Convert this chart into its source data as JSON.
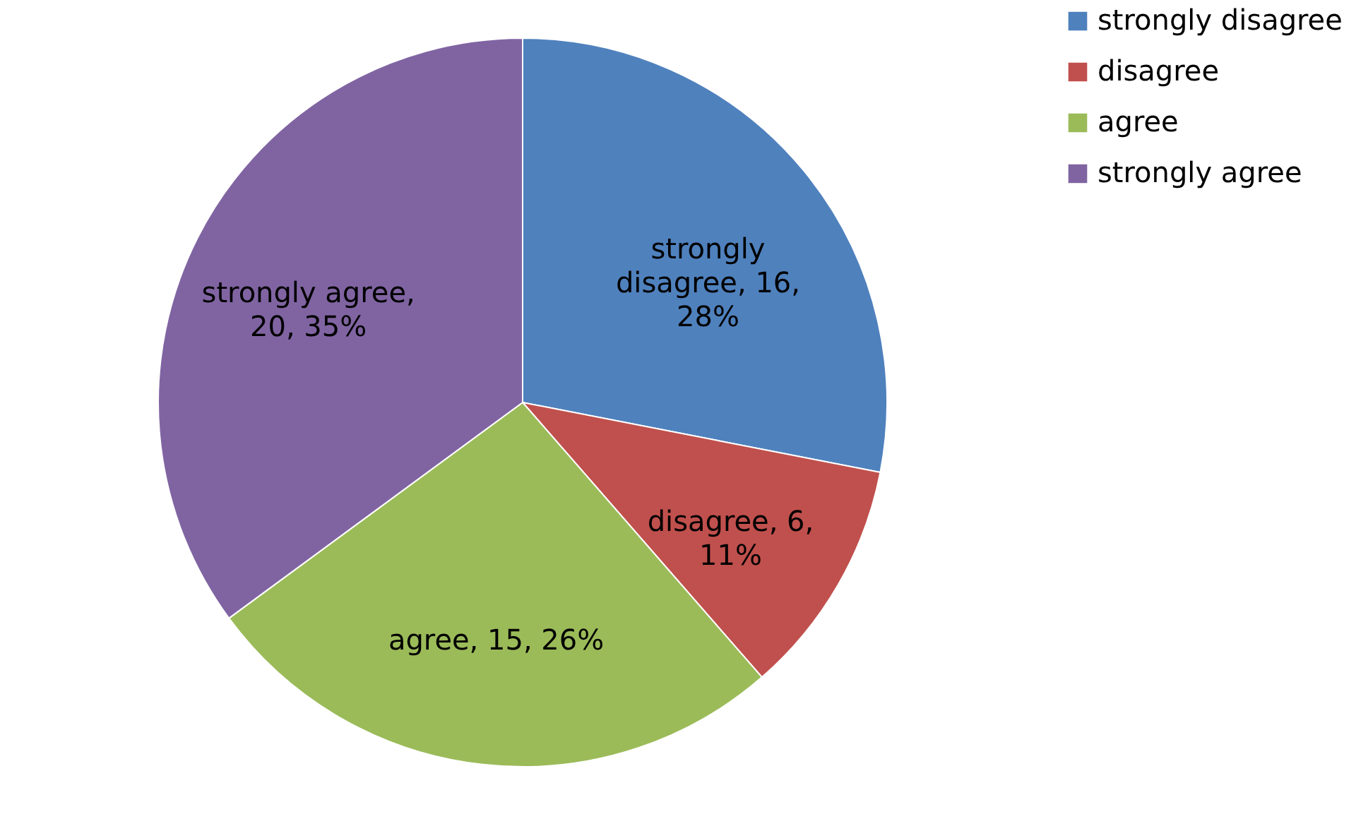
{
  "chart_data": {
    "type": "pie",
    "categories": [
      "strongly disagree",
      "disagree",
      "agree",
      "strongly agree"
    ],
    "values": [
      16,
      6,
      15,
      20
    ],
    "colors": [
      "#4f81bd",
      "#c0504d",
      "#9bbb59",
      "#8064a2"
    ],
    "value_labels": [
      "strongly disagree, 16, 28%",
      "disagree, 6, 11%",
      "agree, 15, 26%",
      "strongly agree, 20, 35%"
    ],
    "legend": "right"
  }
}
